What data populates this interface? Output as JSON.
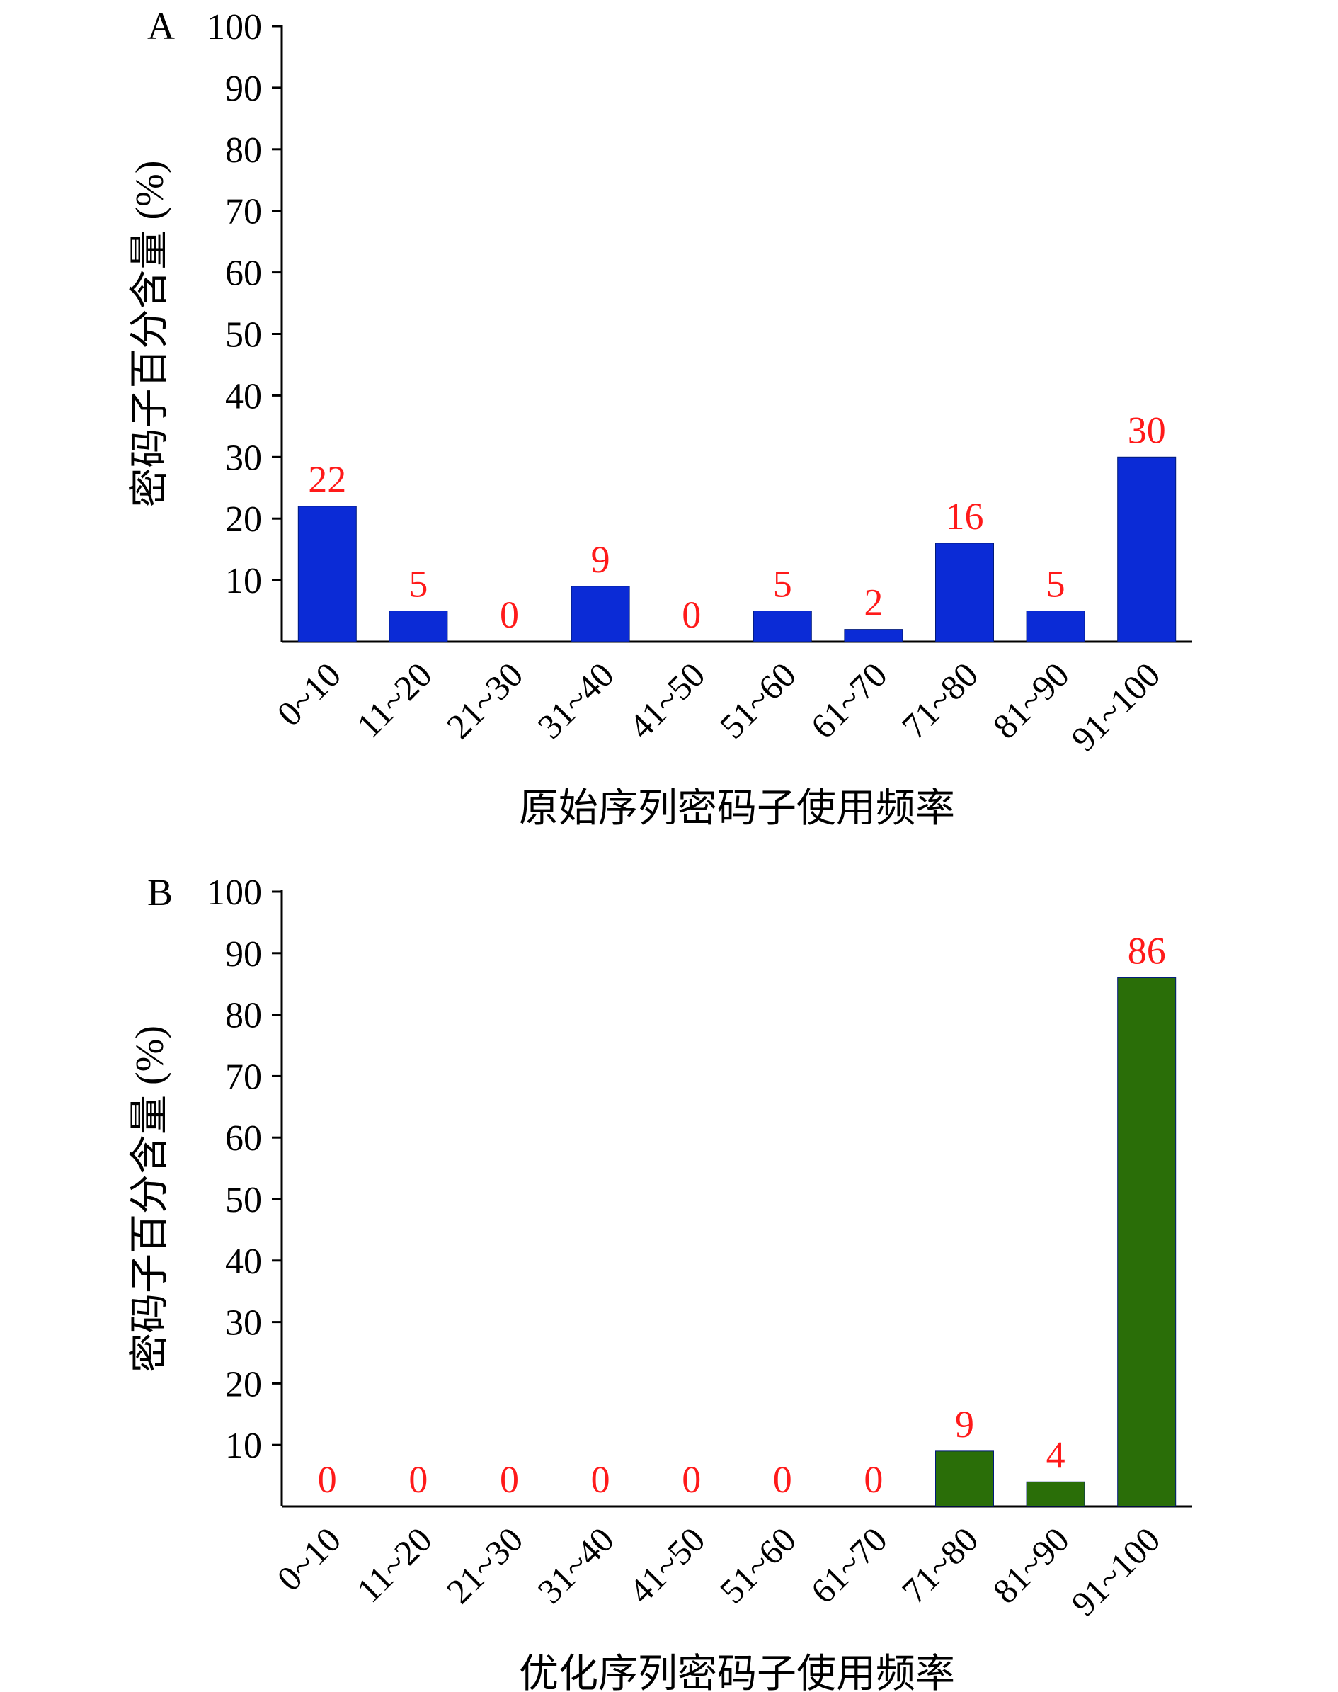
{
  "chart_data": [
    {
      "type": "bar",
      "panel_label": "A",
      "categories": [
        "0~10",
        "11~20",
        "21~30",
        "31~40",
        "41~50",
        "51~60",
        "61~70",
        "71~80",
        "81~90",
        "91~100"
      ],
      "values": [
        22,
        5,
        0,
        9,
        0,
        5,
        2,
        16,
        5,
        30
      ],
      "data_labels": [
        "22",
        "5",
        "0",
        "9",
        "0",
        "5",
        "2",
        "16",
        "5",
        "30"
      ],
      "xlabel": "原始序列密码子使用频率",
      "ylabel": "密码子百分含量 (%)",
      "ylim": [
        0,
        100
      ],
      "yticks": [
        "10",
        "20",
        "30",
        "40",
        "50",
        "60",
        "70",
        "80",
        "90",
        "100"
      ],
      "bar_color": "#0b2bd6",
      "label_color": "#ff1a1a",
      "grid": false
    },
    {
      "type": "bar",
      "panel_label": "B",
      "categories": [
        "0~10",
        "11~20",
        "21~30",
        "31~40",
        "41~50",
        "51~60",
        "61~70",
        "71~80",
        "81~90",
        "91~100"
      ],
      "values": [
        0,
        0,
        0,
        0,
        0,
        0,
        0,
        9,
        4,
        86
      ],
      "data_labels": [
        "0",
        "0",
        "0",
        "0",
        "0",
        "0",
        "0",
        "9",
        "4",
        "86"
      ],
      "xlabel": "优化序列密码子使用频率",
      "ylabel": "密码子百分含量 (%)",
      "ylim": [
        0,
        100
      ],
      "yticks": [
        "10",
        "20",
        "30",
        "40",
        "50",
        "60",
        "70",
        "80",
        "90",
        "100"
      ],
      "bar_color": "#2a6e08",
      "label_color": "#ff1a1a",
      "grid": false
    }
  ]
}
